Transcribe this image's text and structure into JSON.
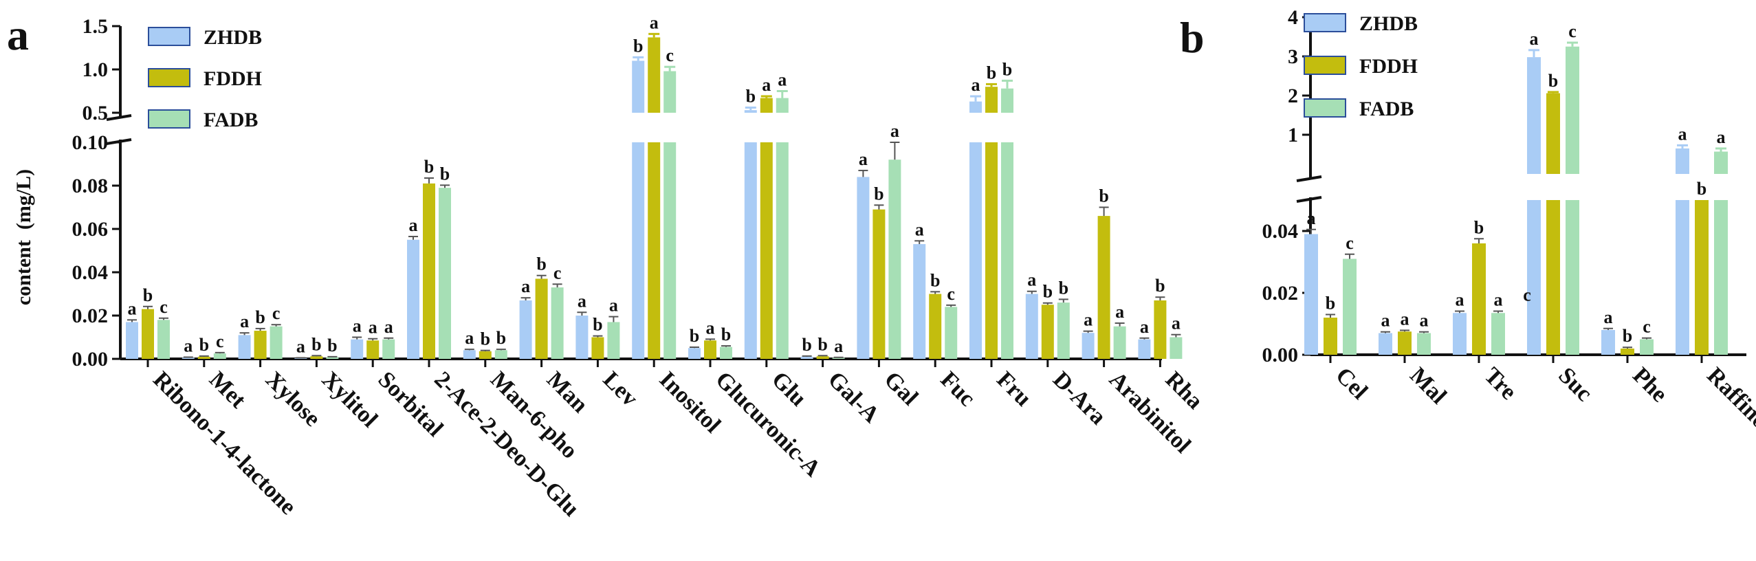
{
  "chart_data": [
    {
      "type": "bar",
      "panel_label": "a",
      "ylabel": "content  (mg/L)",
      "broken_axis": true,
      "ylim_lower": [
        0,
        0.1
      ],
      "ylim_upper": [
        0.5,
        1.5
      ],
      "yticks_lower": [
        "0.00",
        "0.02",
        "0.04",
        "0.06",
        "0.08",
        "0.10"
      ],
      "yticks_upper": [
        "0.5",
        "1.0",
        "1.5"
      ],
      "legend_position": "top-left",
      "categories": [
        "Ribono-1-4-lactone",
        "Met",
        "Xylose",
        "Xylitol",
        "Sorbital",
        "2-Ace-2-Deo-D-Glu",
        "Man-6-pho",
        "Man",
        "Lev",
        "Inositol",
        "Glucuronic-A",
        "Glu",
        "Gal-A",
        "Gal",
        "Fuc",
        "Fru",
        "D-Ara",
        "Arabinitol",
        "Rha"
      ],
      "series": [
        {
          "name": "ZHDB",
          "color": "#a9ccf5",
          "values": [
            0.017,
            0.0005,
            0.011,
            0.0003,
            0.009,
            0.055,
            0.004,
            0.027,
            0.02,
            1.1,
            0.005,
            0.53,
            0.001,
            0.084,
            0.053,
            0.63,
            0.03,
            0.012,
            0.009
          ],
          "errors": [
            0.001,
            0.0003,
            0.001,
            0.0002,
            0.001,
            0.0015,
            0.0004,
            0.0012,
            0.0015,
            0.04,
            0.0004,
            0.03,
            0.0003,
            0.003,
            0.0015,
            0.06,
            0.0012,
            0.0008,
            0.0006
          ],
          "letters": [
            "a",
            "a",
            "a",
            "a",
            "a",
            "a",
            "a",
            "a",
            "a",
            "b",
            "b",
            "b",
            "b",
            "a",
            "a",
            "a",
            "a",
            "a",
            "a"
          ]
        },
        {
          "name": "FDDH",
          "color": "#c3bd0e",
          "values": [
            0.023,
            0.001,
            0.013,
            0.0012,
            0.0085,
            0.081,
            0.0035,
            0.037,
            0.01,
            1.37,
            0.0085,
            0.67,
            0.0012,
            0.069,
            0.03,
            0.8,
            0.025,
            0.066,
            0.027
          ],
          "errors": [
            0.0012,
            0.0003,
            0.001,
            0.0003,
            0.0008,
            0.0025,
            0.0004,
            0.0015,
            0.0006,
            0.04,
            0.0006,
            0.02,
            0.0003,
            0.002,
            0.001,
            0.03,
            0.0008,
            0.004,
            0.0015
          ],
          "letters": [
            "b",
            "b",
            "b",
            "b",
            "a",
            "b",
            "b",
            "b",
            "b",
            "a",
            "a",
            "a",
            "b",
            "b",
            "b",
            "b",
            "b",
            "b",
            "b"
          ]
        },
        {
          "name": "FADB",
          "color": "#a6dfb5",
          "values": [
            0.018,
            0.0025,
            0.015,
            0.0008,
            0.009,
            0.079,
            0.004,
            0.033,
            0.017,
            0.98,
            0.0055,
            0.67,
            0.0005,
            0.092,
            0.024,
            0.78,
            0.026,
            0.015,
            0.01
          ],
          "errors": [
            0.0008,
            0.0004,
            0.0008,
            0.0002,
            0.0006,
            0.0012,
            0.0004,
            0.0015,
            0.0025,
            0.05,
            0.0005,
            0.08,
            0.0002,
            0.008,
            0.0008,
            0.09,
            0.0015,
            0.0015,
            0.0012
          ],
          "letters": [
            "c",
            "c",
            "c",
            "b",
            "a",
            "b",
            "b",
            "c",
            "a",
            "c",
            "b",
            "a",
            "a",
            "a",
            "c",
            "b",
            "b",
            "a",
            "a"
          ]
        }
      ]
    },
    {
      "type": "bar",
      "panel_label": "b",
      "broken_axis": true,
      "ylim_lower": [
        0,
        0.05
      ],
      "ylim_upper": [
        0,
        4
      ],
      "yticks_lower": [
        "0.00",
        "0.02",
        "0.04"
      ],
      "yticks_upper": [
        "1",
        "2",
        "3",
        "4"
      ],
      "legend_position": "top-left",
      "categories": [
        "Cel",
        "Mal",
        "Tre",
        "Suc",
        "Phe",
        "Raffinose"
      ],
      "series": [
        {
          "name": "ZHDB",
          "color": "#a9ccf5",
          "values": [
            0.039,
            0.007,
            0.0135,
            2.98,
            0.008,
            0.65
          ],
          "errors": [
            0.0015,
            0.0004,
            0.0006,
            0.18,
            0.0005,
            0.08
          ],
          "letters": [
            "a",
            "a",
            "a",
            "a",
            "a",
            "a"
          ]
        },
        {
          "name": "FDDH",
          "color": "#c3bd0e",
          "values": [
            0.012,
            0.0075,
            0.036,
            2.06,
            0.002,
            0.05
          ],
          "errors": [
            0.001,
            0.0004,
            0.0015,
            0.03,
            0.0004,
            0.0
          ],
          "letters": [
            "b",
            "a",
            "b",
            "b",
            "b",
            "b"
          ]
        },
        {
          "name": "FADB",
          "color": "#a6dfb5",
          "values": [
            0.031,
            0.007,
            0.0135,
            3.25,
            0.005,
            0.57
          ],
          "errors": [
            0.0015,
            0.0004,
            0.0006,
            0.1,
            0.0004,
            0.08
          ],
          "letters": [
            "c",
            "a",
            "a",
            "c",
            "c",
            "a"
          ]
        }
      ],
      "extra_annotations": [
        {
          "category": "Suc",
          "text": "c"
        }
      ]
    }
  ]
}
